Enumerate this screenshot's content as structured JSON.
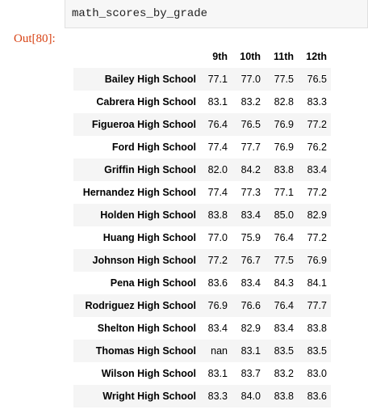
{
  "input": {
    "code": "math_scores_by_grade"
  },
  "output": {
    "prompt": "Out[80]:"
  },
  "table": {
    "columns": [
      "9th",
      "10th",
      "11th",
      "12th"
    ],
    "rows": [
      {
        "school": "Bailey High School",
        "values": [
          "77.1",
          "77.0",
          "77.5",
          "76.5"
        ]
      },
      {
        "school": "Cabrera High School",
        "values": [
          "83.1",
          "83.2",
          "82.8",
          "83.3"
        ]
      },
      {
        "school": "Figueroa High School",
        "values": [
          "76.4",
          "76.5",
          "76.9",
          "77.2"
        ]
      },
      {
        "school": "Ford High School",
        "values": [
          "77.4",
          "77.7",
          "76.9",
          "76.2"
        ]
      },
      {
        "school": "Griffin High School",
        "values": [
          "82.0",
          "84.2",
          "83.8",
          "83.4"
        ]
      },
      {
        "school": "Hernandez High School",
        "values": [
          "77.4",
          "77.3",
          "77.1",
          "77.2"
        ]
      },
      {
        "school": "Holden High School",
        "values": [
          "83.8",
          "83.4",
          "85.0",
          "82.9"
        ]
      },
      {
        "school": "Huang High School",
        "values": [
          "77.0",
          "75.9",
          "76.4",
          "77.2"
        ]
      },
      {
        "school": "Johnson High School",
        "values": [
          "77.2",
          "76.7",
          "77.5",
          "76.9"
        ]
      },
      {
        "school": "Pena High School",
        "values": [
          "83.6",
          "83.4",
          "84.3",
          "84.1"
        ]
      },
      {
        "school": "Rodriguez High School",
        "values": [
          "76.9",
          "76.6",
          "76.4",
          "77.7"
        ]
      },
      {
        "school": "Shelton High School",
        "values": [
          "83.4",
          "82.9",
          "83.4",
          "83.8"
        ]
      },
      {
        "school": "Thomas High School",
        "values": [
          "nan",
          "83.1",
          "83.5",
          "83.5"
        ]
      },
      {
        "school": "Wilson High School",
        "values": [
          "83.1",
          "83.7",
          "83.2",
          "83.0"
        ]
      },
      {
        "school": "Wright High School",
        "values": [
          "83.3",
          "84.0",
          "83.8",
          "83.6"
        ]
      }
    ]
  }
}
